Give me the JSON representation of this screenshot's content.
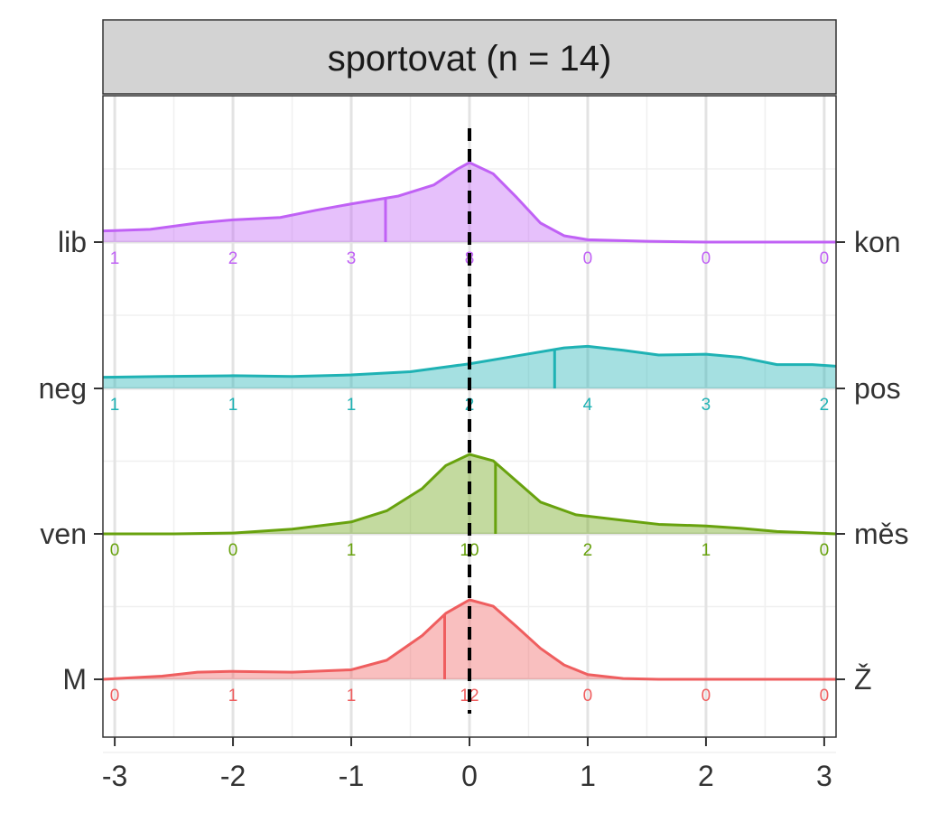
{
  "chart_data": {
    "type": "ridgeline",
    "facet_title": "sportovat (n = 14)",
    "x_ticks": [
      -3,
      -2,
      -1,
      0,
      1,
      2,
      3
    ],
    "xlim": [
      -3.1,
      3.1
    ],
    "reference_line_x": 0,
    "rows": [
      {
        "left": "lib",
        "right": "kon",
        "color": "#c061f5",
        "counts": [
          1,
          2,
          3,
          8,
          0,
          0,
          0
        ],
        "mean": -0.71,
        "density": [
          [
            -3.1,
            0.14
          ],
          [
            -2.7,
            0.16
          ],
          [
            -2.3,
            0.24
          ],
          [
            -2.0,
            0.28
          ],
          [
            -1.6,
            0.31
          ],
          [
            -1.3,
            0.4
          ],
          [
            -1.0,
            0.48
          ],
          [
            -0.6,
            0.58
          ],
          [
            -0.3,
            0.72
          ],
          [
            -0.1,
            0.92
          ],
          [
            0.0,
            1.0
          ],
          [
            0.2,
            0.86
          ],
          [
            0.4,
            0.56
          ],
          [
            0.6,
            0.24
          ],
          [
            0.8,
            0.08
          ],
          [
            1.0,
            0.03
          ],
          [
            1.5,
            0.01
          ],
          [
            2.0,
            0.0
          ],
          [
            3.1,
            0.0
          ]
        ]
      },
      {
        "left": "neg",
        "right": "pos",
        "color": "#1fb2b4",
        "counts": [
          1,
          1,
          1,
          2,
          4,
          3,
          2
        ],
        "mean": 0.72,
        "density": [
          [
            -3.1,
            0.14
          ],
          [
            -2.6,
            0.15
          ],
          [
            -2.0,
            0.16
          ],
          [
            -1.5,
            0.15
          ],
          [
            -1.0,
            0.17
          ],
          [
            -0.5,
            0.21
          ],
          [
            0.0,
            0.31
          ],
          [
            0.4,
            0.41
          ],
          [
            0.8,
            0.51
          ],
          [
            1.0,
            0.53
          ],
          [
            1.3,
            0.48
          ],
          [
            1.6,
            0.42
          ],
          [
            2.0,
            0.43
          ],
          [
            2.3,
            0.39
          ],
          [
            2.6,
            0.3
          ],
          [
            2.9,
            0.3
          ],
          [
            3.1,
            0.28
          ]
        ]
      },
      {
        "left": "ven",
        "right": "měs",
        "color": "#68a20e",
        "counts": [
          0,
          0,
          1,
          10,
          2,
          1,
          0
        ],
        "mean": 0.22,
        "density": [
          [
            -3.1,
            0.0
          ],
          [
            -2.5,
            0.0
          ],
          [
            -2.0,
            0.01
          ],
          [
            -1.5,
            0.06
          ],
          [
            -1.0,
            0.15
          ],
          [
            -0.7,
            0.29
          ],
          [
            -0.4,
            0.57
          ],
          [
            -0.2,
            0.86
          ],
          [
            0.0,
            1.0
          ],
          [
            0.2,
            0.92
          ],
          [
            0.4,
            0.66
          ],
          [
            0.6,
            0.4
          ],
          [
            0.9,
            0.24
          ],
          [
            1.3,
            0.17
          ],
          [
            1.6,
            0.12
          ],
          [
            2.0,
            0.1
          ],
          [
            2.3,
            0.07
          ],
          [
            2.6,
            0.03
          ],
          [
            3.1,
            0.0
          ]
        ]
      },
      {
        "left": "M",
        "right": "Ž",
        "color": "#ef5e5f",
        "counts": [
          0,
          1,
          1,
          12,
          0,
          0,
          0
        ],
        "mean": -0.21,
        "density": [
          [
            -3.1,
            0.0
          ],
          [
            -2.6,
            0.04
          ],
          [
            -2.3,
            0.09
          ],
          [
            -2.0,
            0.1
          ],
          [
            -1.5,
            0.09
          ],
          [
            -1.0,
            0.12
          ],
          [
            -0.7,
            0.24
          ],
          [
            -0.4,
            0.55
          ],
          [
            -0.2,
            0.83
          ],
          [
            0.0,
            1.0
          ],
          [
            0.2,
            0.92
          ],
          [
            0.4,
            0.66
          ],
          [
            0.6,
            0.39
          ],
          [
            0.8,
            0.18
          ],
          [
            1.0,
            0.06
          ],
          [
            1.3,
            0.01
          ],
          [
            1.6,
            0.0
          ],
          [
            3.1,
            0.0
          ]
        ]
      }
    ]
  }
}
